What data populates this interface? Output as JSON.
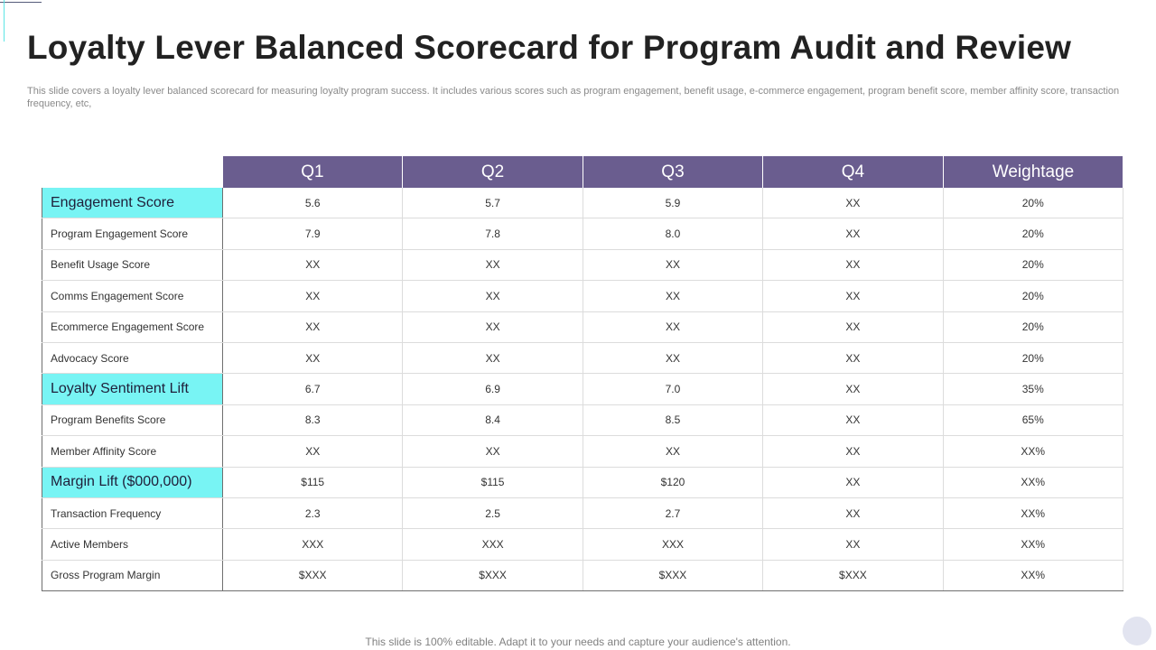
{
  "slide": {
    "title": "Loyalty Lever Balanced Scorecard for Program Audit and Review",
    "subtitle": "This slide covers a loyalty lever balanced scorecard for measuring loyalty program success. It includes various scores such as program engagement, benefit usage, e-commerce engagement, program benefit score, member affinity score, transaction frequency, etc,",
    "footer_note": "This slide is 100% editable. Adapt it to your needs and capture your audience's attention."
  },
  "scorecard": {
    "headers": [
      "Q1",
      "Q2",
      "Q3",
      "Q4",
      "Weightage"
    ],
    "rows": [
      {
        "label": "Engagement Score",
        "category": true,
        "values": [
          "5.6",
          "5.7",
          "5.9",
          "XX",
          "20%"
        ]
      },
      {
        "label": "Program Engagement Score",
        "category": false,
        "values": [
          "7.9",
          "7.8",
          "8.0",
          "XX",
          "20%"
        ]
      },
      {
        "label": "Benefit Usage Score",
        "category": false,
        "values": [
          "XX",
          "XX",
          "XX",
          "XX",
          "20%"
        ]
      },
      {
        "label": "Comms Engagement Score",
        "category": false,
        "values": [
          "XX",
          "XX",
          "XX",
          "XX",
          "20%"
        ]
      },
      {
        "label": "Ecommerce  Engagement Score",
        "category": false,
        "values": [
          "XX",
          "XX",
          "XX",
          "XX",
          "20%"
        ]
      },
      {
        "label": "Advocacy  Score",
        "category": false,
        "values": [
          "XX",
          "XX",
          "XX",
          "XX",
          "20%"
        ]
      },
      {
        "label": "Loyalty Sentiment Lift",
        "category": true,
        "values": [
          "6.7",
          "6.9",
          "7.0",
          "XX",
          "35%"
        ]
      },
      {
        "label": "Program Benefits Score",
        "category": false,
        "values": [
          "8.3",
          "8.4",
          "8.5",
          "XX",
          "65%"
        ]
      },
      {
        "label": "Member Affinity  Score",
        "category": false,
        "values": [
          "XX",
          "XX",
          "XX",
          "XX",
          "XX%"
        ]
      },
      {
        "label": "Margin Lift ($000,000)",
        "category": true,
        "values": [
          "$115",
          "$115",
          "$120",
          "XX",
          "XX%"
        ]
      },
      {
        "label": "Transaction Frequency",
        "category": false,
        "values": [
          "2.3",
          "2.5",
          "2.7",
          "XX",
          "XX%"
        ]
      },
      {
        "label": "Active  Members",
        "category": false,
        "values": [
          "XXX",
          "XXX",
          "XXX",
          "XX",
          "XX%"
        ]
      },
      {
        "label": "Gross Program Margin",
        "category": false,
        "values": [
          "$XXX",
          "$XXX",
          "$XXX",
          "$XXX",
          "XX%"
        ]
      }
    ]
  },
  "colors": {
    "header_bg": "#6a5d8f",
    "category_bg": "#78f4f4"
  }
}
